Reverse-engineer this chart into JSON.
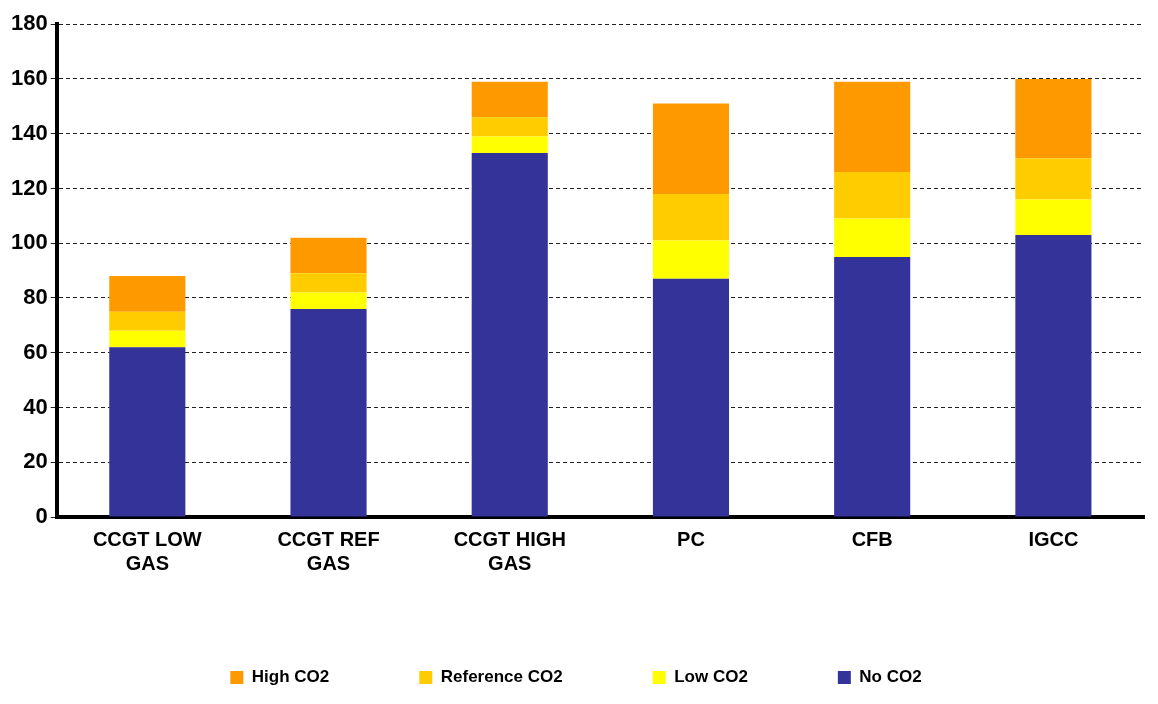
{
  "chart_data": {
    "type": "bar",
    "stacked": true,
    "categories": [
      "CCGT LOW GAS",
      "CCGT REF GAS",
      "CCGT HIGH GAS",
      "PC",
      "CFB",
      "IGCC"
    ],
    "series": [
      {
        "name": "No CO2",
        "color": "#333399",
        "values": [
          62,
          76,
          133,
          87,
          95,
          103
        ]
      },
      {
        "name": "Low CO2",
        "color": "#ffff00",
        "values": [
          6,
          6,
          6,
          14,
          14,
          13
        ]
      },
      {
        "name": "Reference CO2",
        "color": "#ffcc00",
        "values": [
          7,
          7,
          7,
          17,
          17,
          15
        ]
      },
      {
        "name": "High CO2",
        "color": "#ff9900",
        "values": [
          13,
          13,
          13,
          33,
          33,
          29
        ]
      }
    ],
    "ylim": [
      0,
      180
    ],
    "yticks": [
      0,
      20,
      40,
      60,
      80,
      100,
      120,
      140,
      160,
      180
    ],
    "grid": "y",
    "legend": "bottom"
  }
}
